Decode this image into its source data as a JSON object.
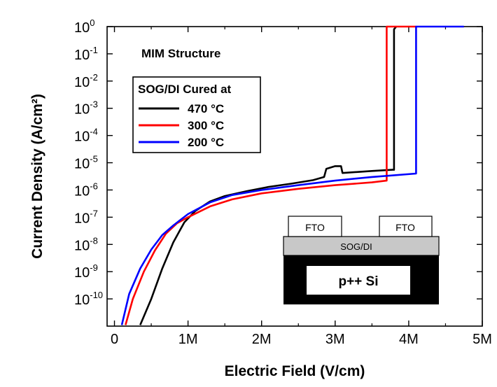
{
  "chart_data": {
    "type": "line",
    "xlabel": "Electric Field (V/cm)",
    "ylabel": "Current Density (A/cm²)",
    "xscale": "linear",
    "yscale": "log",
    "xlim": [
      -100000,
      5000000
    ],
    "ylim": [
      1e-11,
      1
    ],
    "x_ticks": [
      {
        "value": 0,
        "label": "0"
      },
      {
        "value": 1000000,
        "label": "1M"
      },
      {
        "value": 2000000,
        "label": "2M"
      },
      {
        "value": 3000000,
        "label": "3M"
      },
      {
        "value": 4000000,
        "label": "4M"
      },
      {
        "value": 5000000,
        "label": "5M"
      }
    ],
    "y_ticks": [
      {
        "exp": 0,
        "label": "10",
        "sup": "0"
      },
      {
        "exp": -1,
        "label": "10",
        "sup": "-1"
      },
      {
        "exp": -2,
        "label": "10",
        "sup": "-2"
      },
      {
        "exp": -3,
        "label": "10",
        "sup": "-3"
      },
      {
        "exp": -4,
        "label": "10",
        "sup": "-4"
      },
      {
        "exp": -5,
        "label": "10",
        "sup": "-5"
      },
      {
        "exp": -6,
        "label": "10",
        "sup": "-6"
      },
      {
        "exp": -7,
        "label": "10",
        "sup": "-7"
      },
      {
        "exp": -8,
        "label": "10",
        "sup": "-8"
      },
      {
        "exp": -9,
        "label": "10",
        "sup": "-9"
      },
      {
        "exp": -10,
        "label": "10",
        "sup": "-10"
      }
    ],
    "annotation_title": "MIM Structure",
    "legend_title": "SOG/DI Cured at",
    "legend_position": "upper-left",
    "series": [
      {
        "name": "470 °C",
        "color": "#000000",
        "x": [
          350000,
          500000,
          650000,
          800000,
          950000,
          1100000,
          1300000,
          1500000,
          1800000,
          2100000,
          2400000,
          2700000,
          2850000,
          2880000,
          3000000,
          3080000,
          3100000,
          3500000,
          3780000,
          3800000,
          3800000,
          3830000
        ],
        "y": [
          1.1e-11,
          1e-10,
          1.3e-09,
          1.2e-08,
          6.5e-08,
          1.7e-07,
          3.8e-07,
          6e-07,
          9e-07,
          1.3e-06,
          1.7e-06,
          2.3e-06,
          3e-06,
          6e-06,
          7.5e-06,
          7.5e-06,
          4.2e-06,
          5e-06,
          5.5e-06,
          5.5e-06,
          0.8,
          1
        ]
      },
      {
        "name": "300 °C",
        "color": "#ff0000",
        "x": [
          150000,
          250000,
          400000,
          550000,
          700000,
          850000,
          1000000,
          1300000,
          1600000,
          2000000,
          2500000,
          3000000,
          3500000,
          3700000,
          3700000,
          3750000,
          4100000
        ],
        "y": [
          1.1e-11,
          1e-10,
          1e-09,
          6e-09,
          2.5e-08,
          6e-08,
          1e-07,
          2.5e-07,
          4.5e-07,
          7.5e-07,
          1.1e-06,
          1.5e-06,
          1.9e-06,
          2.2e-06,
          1,
          1,
          1
        ]
      },
      {
        "name": "200 °C",
        "color": "#0000ff",
        "x": [
          100000,
          200000,
          350000,
          500000,
          650000,
          800000,
          1000000,
          1300000,
          1600000,
          2000000,
          2500000,
          3000000,
          3500000,
          4100000,
          4100000,
          4200000,
          4750000
        ],
        "y": [
          1.1e-11,
          1.5e-10,
          1.3e-09,
          6.5e-09,
          2.2e-08,
          5e-08,
          1.3e-07,
          3.5e-07,
          6.5e-07,
          1e-06,
          1.5e-06,
          2.2e-06,
          3e-06,
          4e-06,
          1,
          1,
          1
        ]
      }
    ]
  },
  "inset": {
    "electrode_left": "FTO",
    "electrode_right": "FTO",
    "dielectric": "SOG/DI",
    "substrate": "p++ Si"
  }
}
